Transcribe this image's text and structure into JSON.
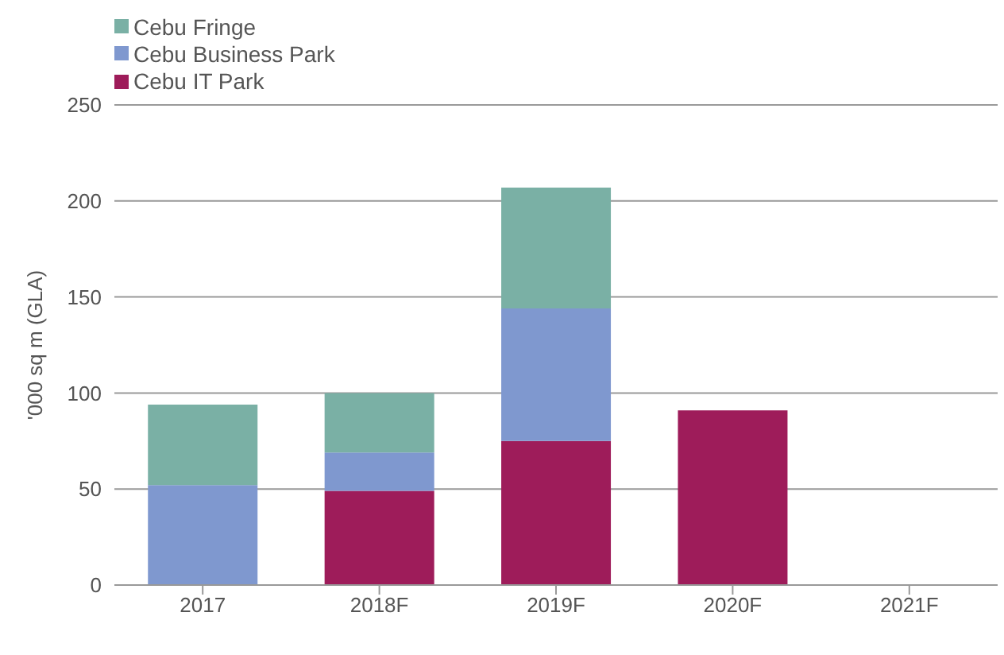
{
  "chart_data": {
    "type": "bar",
    "stacked": true,
    "ylabel": "'000 sq m (GLA)",
    "categories": [
      "2017",
      "2018F",
      "2019F",
      "2020F",
      "2021F"
    ],
    "series": [
      {
        "name": "Cebu IT Park",
        "color": "#9e1c5a",
        "values": [
          0,
          49,
          75,
          91,
          0
        ]
      },
      {
        "name": "Cebu Business Park",
        "color": "#7f98cf",
        "values": [
          52,
          20,
          69,
          0,
          0
        ]
      },
      {
        "name": "Cebu Fringe",
        "color": "#7ab0a5",
        "values": [
          42,
          31,
          63,
          0,
          0
        ]
      }
    ],
    "ylim": [
      0,
      250
    ],
    "yticks": [
      0,
      50,
      100,
      150,
      200,
      250
    ],
    "grid": "y",
    "legend": "top left"
  }
}
